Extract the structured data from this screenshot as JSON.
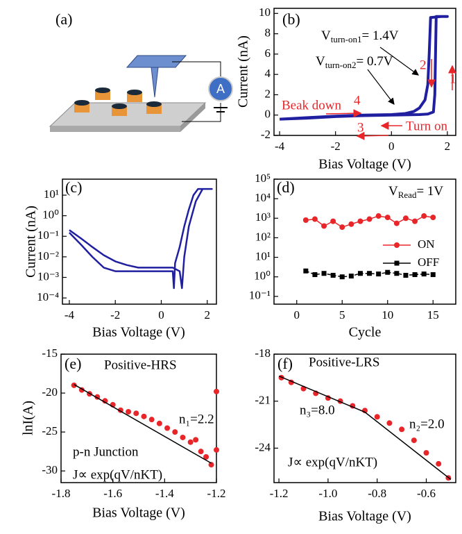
{
  "schematic": {
    "label": "(a)",
    "meter": "A"
  },
  "chart_data": [
    {
      "type": "line",
      "label": "(b)",
      "x_label": "Bias Voltage (V)",
      "y_label": "Current (nA)",
      "xlim": [
        -4.2,
        2.3
      ],
      "xticks": [
        -4,
        -2,
        0,
        2
      ],
      "ylim": [
        -2,
        10.5
      ],
      "yticks": [
        -2,
        0,
        2,
        4,
        6,
        8,
        10
      ],
      "log_y": false,
      "series": [
        {
          "color": "#1f1fa0",
          "mode": "line",
          "x": [
            -4,
            -3,
            -2,
            -1,
            0,
            1,
            1.3,
            1.5,
            1.55,
            1.6,
            1.7,
            2,
            1.8,
            1.4,
            1.35,
            1.3,
            1.2,
            1.0,
            0.8,
            0.5,
            0,
            -1,
            -2,
            -3,
            -4
          ],
          "values": [
            -0.4,
            -0.3,
            -0.15,
            -0.05,
            0,
            0.05,
            0.1,
            0.3,
            2,
            9.7,
            9.7,
            9.7,
            9.7,
            9.6,
            6,
            3,
            1.5,
            0.7,
            0.35,
            0.15,
            0.05,
            0,
            -0.1,
            -0.25,
            -0.4
          ]
        }
      ],
      "annotations": [
        {
          "base": "V",
          "sub": "turn-on1",
          "rest": "= 1.4V",
          "color": "#000000"
        },
        {
          "base": "V",
          "sub": "turn-on2",
          "rest": "= 0.7V",
          "color": "#000000"
        },
        {
          "text": "Beak down",
          "color": "#e8262a"
        },
        {
          "text": "Turn on",
          "color": "#e8262a"
        },
        {
          "text": "1",
          "color": "#e8262a"
        },
        {
          "text": "2",
          "color": "#e8262a"
        },
        {
          "text": "3",
          "color": "#e8262a"
        },
        {
          "text": "4",
          "color": "#e8262a"
        }
      ]
    },
    {
      "type": "line",
      "label": "(c)",
      "x_label": "Bias Voltage (V)",
      "y_label": "Current (nA)",
      "xlim": [
        -4.3,
        2.4
      ],
      "xticks": [
        -4,
        -2,
        0,
        2
      ],
      "ylim": [
        5e-05,
        60
      ],
      "log_y": true,
      "yticks": [
        {
          "value": 0.0001,
          "label": "10⁻⁴"
        },
        {
          "value": 0.001,
          "label": "10⁻³"
        },
        {
          "value": 0.01,
          "label": "10⁻²"
        },
        {
          "value": 0.1,
          "label": "10⁻¹"
        },
        {
          "value": 1,
          "label": "10⁰"
        },
        {
          "value": 10,
          "label": "10¹"
        }
      ],
      "series": [
        {
          "color": "#1f1fa0",
          "mode": "line",
          "x": [
            -4,
            -3.5,
            -3,
            -2.5,
            -2,
            -1.5,
            -1,
            -0.5,
            0,
            0.5,
            0.8,
            0.9,
            1.0,
            1.2,
            1.5,
            1.8,
            2.2,
            1.6,
            1.4,
            1.2,
            1.0,
            0.8,
            0.6,
            0.55,
            0.5,
            0,
            -0.5,
            -1,
            -1.5,
            -2,
            -2.5,
            -3,
            -3.5,
            -4
          ],
          "values": [
            0.2,
            0.08,
            0.03,
            0.012,
            0.006,
            0.004,
            0.003,
            0.003,
            0.003,
            0.003,
            0.002,
            0.0003,
            0.01,
            0.3,
            5,
            20,
            20,
            20,
            10,
            2,
            0.3,
            0.03,
            0.005,
            0.0003,
            0.002,
            0.002,
            0.002,
            0.002,
            0.002,
            0.002,
            0.003,
            0.01,
            0.04,
            0.15
          ]
        }
      ],
      "annotations": []
    },
    {
      "type": "line",
      "label": "(d)",
      "x_label": "Cycle",
      "y_label": null,
      "xlim": [
        -2.5,
        17.5
      ],
      "xticks": [
        0,
        5,
        10,
        15
      ],
      "ylim": [
        0.04,
        100000
      ],
      "log_y": true,
      "yticks": [
        {
          "value": 0.1,
          "label": "10⁻¹"
        },
        {
          "value": 1,
          "label": "10⁰"
        },
        {
          "value": 10,
          "label": "10¹"
        },
        {
          "value": 100,
          "label": "10²"
        },
        {
          "value": 1000,
          "label": "10³"
        },
        {
          "value": 10000,
          "label": "10⁴"
        },
        {
          "value": 100000,
          "label": "10⁵"
        }
      ],
      "legend": "center right",
      "series": [
        {
          "name": "ON",
          "color": "#e8262a",
          "mode": "lines+markers",
          "marker": "circle",
          "x": [
            1,
            2,
            3,
            4,
            5,
            6,
            7,
            8,
            9,
            10,
            11,
            12,
            13,
            14,
            15
          ],
          "values": [
            800,
            900,
            400,
            700,
            350,
            500,
            700,
            900,
            1300,
            1100,
            550,
            1000,
            700,
            1300,
            1100
          ]
        },
        {
          "name": "OFF",
          "color": "#000000",
          "mode": "lines+markers",
          "marker": "square",
          "dash": true,
          "x": [
            1,
            2,
            3,
            4,
            5,
            6,
            7,
            8,
            9,
            10,
            11,
            12,
            13,
            14,
            15
          ],
          "values": [
            2,
            1.3,
            1.5,
            1.2,
            1,
            1.1,
            1.5,
            1.5,
            1.4,
            1.7,
            1.5,
            1.2,
            1.3,
            1.4,
            1.3
          ]
        }
      ],
      "annotations": [
        {
          "base": "V",
          "sub": "Read",
          "rest": "= 1V",
          "color": "#000000"
        }
      ]
    },
    {
      "type": "scatter",
      "label": "(e)",
      "x_label": "Bias Voltage (V)",
      "y_label": "lnI(A)",
      "xlim": [
        -1.8,
        -1.2
      ],
      "xticks": [
        -1.8,
        -1.6,
        -1.4,
        -1.2
      ],
      "ylim": [
        -31.5,
        -15
      ],
      "yticks": [
        -30,
        -25,
        -20,
        -15
      ],
      "log_y": false,
      "series": [
        {
          "color": "#e8262a",
          "mode": "markers",
          "marker": "circle",
          "x": [
            -1.75,
            -1.72,
            -1.69,
            -1.66,
            -1.63,
            -1.6,
            -1.57,
            -1.54,
            -1.51,
            -1.48,
            -1.45,
            -1.42,
            -1.39,
            -1.36,
            -1.33,
            -1.3,
            -1.28,
            -1.26,
            -1.24,
            -1.22,
            -1.2,
            -1.2
          ],
          "values": [
            -19,
            -19.6,
            -20.1,
            -20.5,
            -21,
            -21.5,
            -22.2,
            -22.4,
            -22.6,
            -23,
            -23.4,
            -23.9,
            -24.5,
            -25,
            -25.7,
            -26.3,
            -26,
            -27.5,
            -28.2,
            -29.2,
            -19.8,
            -27.3
          ]
        },
        {
          "color": "#000000",
          "mode": "line",
          "x": [
            -1.75,
            -1.22
          ],
          "values": [
            -18.9,
            -29
          ]
        }
      ],
      "annotations": [
        {
          "text": "Positive-HRS",
          "color": "#000000"
        },
        {
          "text": "n₁=2.2",
          "color": "#000000"
        },
        {
          "text": "p-n Junction",
          "color": "#000000"
        },
        {
          "text": "J∝ exp(qV/nKT)",
          "color": "#000000"
        }
      ]
    },
    {
      "type": "scatter",
      "label": "(f)",
      "x_label": "Bias Voltage (V)",
      "y_label": null,
      "xlim": [
        -1.22,
        -0.48
      ],
      "xticks": [
        -1.2,
        {
          "value": -1,
          "label": "-1.0"
        },
        -0.8,
        -0.6
      ],
      "ylim": [
        -26.2,
        -18
      ],
      "yticks": [
        -24,
        -21,
        -18
      ],
      "log_y": false,
      "series": [
        {
          "color": "#e8262a",
          "mode": "markers",
          "marker": "circle",
          "x": [
            -1.19,
            -1.15,
            -1.1,
            -1.05,
            -1,
            -0.95,
            -0.9,
            -0.85,
            -0.8,
            -0.75,
            -0.7,
            -0.65,
            -0.6,
            -0.55,
            -0.51
          ],
          "values": [
            -19.5,
            -19.8,
            -20.2,
            -20.5,
            -20.8,
            -21,
            -21.3,
            -21.6,
            -22,
            -22.4,
            -22.8,
            -23.5,
            -24.3,
            -25,
            -25.9
          ]
        },
        {
          "color": "#000000",
          "mode": "line",
          "x": [
            -1.2,
            -0.85,
            -0.5
          ],
          "values": [
            -19.4,
            -21.7,
            -26
          ]
        }
      ],
      "annotations": [
        {
          "text": "Positive-LRS",
          "color": "#000000"
        },
        {
          "text": "n₃=8.0",
          "color": "#000000"
        },
        {
          "text": "n₂=2.0",
          "color": "#000000"
        },
        {
          "text": "J∝ exp(qV/nKT)",
          "color": "#000000"
        }
      ]
    }
  ]
}
